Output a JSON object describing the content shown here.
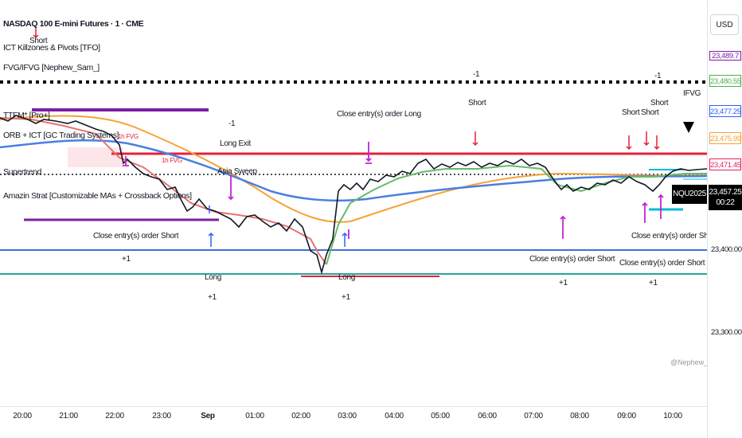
{
  "symbol_title": "NASDAQ 100 E-mini Futures · 1 · CME",
  "indicators": [
    "ICT Killzones & Pivots [TFO]",
    "FVG/IFVG [Nephew_Sam_]",
    "TTFM* [Pro+]",
    "ORB + ICT [GC Trading Systems]",
    "Supertrend",
    "Amazin Strat [Customizable MAs + Crossback Options]"
  ],
  "currency_label": "USD",
  "price_tags": [
    {
      "value": "23,480.55",
      "color": "#4caf50"
    },
    {
      "value": "23,477.25",
      "color": "#2962ff"
    },
    {
      "value": "23,475.99",
      "color": "#f7a234"
    },
    {
      "value": "23,471.45",
      "color": "#e91e63"
    }
  ],
  "current_price": {
    "symbol": "NQU2025",
    "value": "23,457.25",
    "countdown": "00:22"
  },
  "price_ticks": [
    "23,400.00",
    "23,300.00"
  ],
  "time_ticks": [
    "20:00",
    "21:00",
    "22:00",
    "23:00",
    "Sep",
    "01:00",
    "02:00",
    "03:00",
    "04:00",
    "05:00",
    "06:00",
    "07:00",
    "08:00",
    "09:00",
    "10:00"
  ],
  "annotations": {
    "short_1": "Short",
    "short_2": "Short",
    "short_3": "Short",
    "short_4": "Short",
    "short_5": "Short",
    "minus_one_1": "-1",
    "minus_one_2": "-1",
    "minus_one_3": "-1",
    "long_exit": "Long Exit",
    "close_long": "Close entry(s) order Long",
    "close_short_1": "Close entry(s) order Short",
    "close_short_2": "Close entry(s) order Short",
    "close_short_3": "Close entry(s) order Short",
    "close_short_4": "Close entry(s) order Short",
    "long_1": "Long",
    "long_2": "Long",
    "plus_one_1": "+1",
    "plus_one_2": "+1",
    "plus_one_3": "+1",
    "plus_one_4": "+1",
    "plus_one_5": "+1",
    "asia_sweep": "Asia Sweep",
    "fvg_1h_1": "1h FVG",
    "fvg_1h_2": "1h FVG",
    "ifvg": "IFVG"
  },
  "watermark": "@Nephew_Sam_",
  "colors": {
    "ma_orange": "#f7a234",
    "ma_blue": "#4a7fe0",
    "level_red": "#e5213b",
    "level_blue": "#3f6fd8",
    "level_teal": "#26a69a",
    "killzone_purple": "#7b1fa2",
    "signal_magenta": "#c026d3",
    "up_arrow_blue": "#2962ff",
    "price_black": "#131722"
  }
}
